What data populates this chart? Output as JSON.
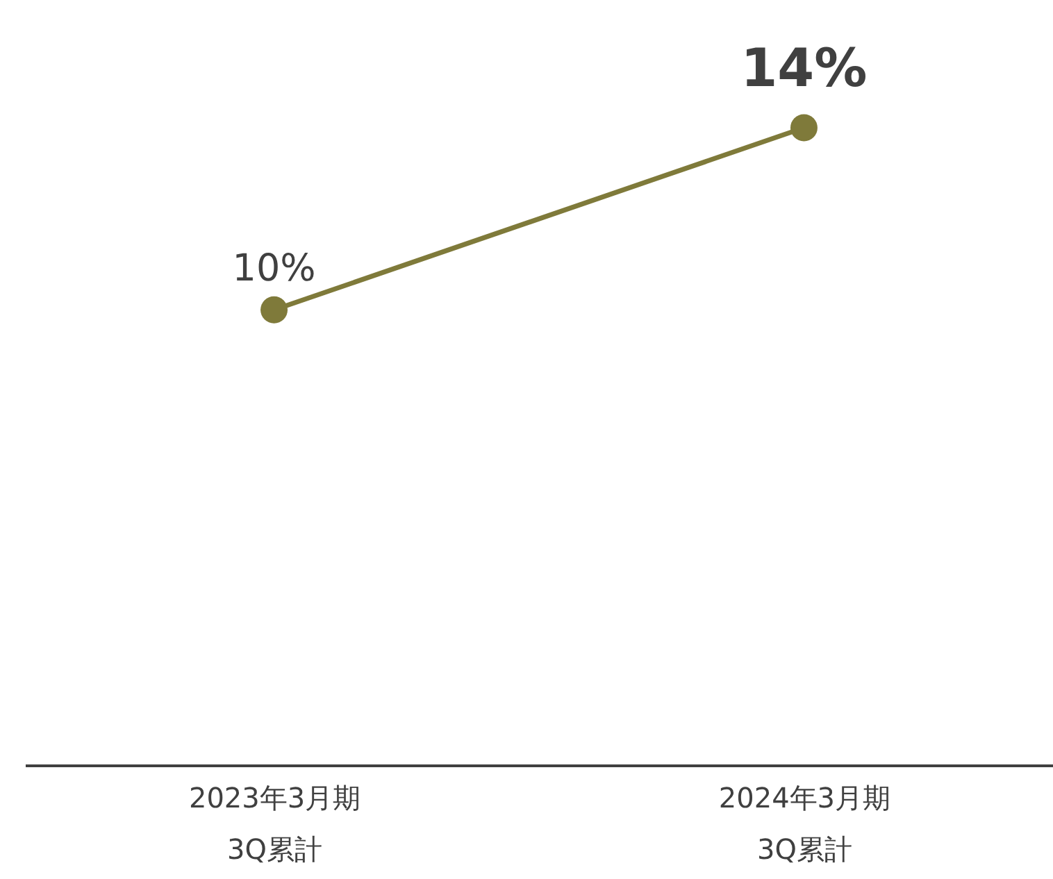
{
  "chart_data": {
    "type": "line",
    "categories": [
      "2023年3月期\n3Q累計",
      "2024年3月期\n3Q累計"
    ],
    "series": [
      {
        "color": "#7f7a3a",
        "values": [
          10,
          14
        ],
        "value_labels": [
          "10%",
          "14%"
        ]
      }
    ],
    "marker": "circle",
    "line_style": "solid",
    "legend": false,
    "tick_labels": "x"
  }
}
